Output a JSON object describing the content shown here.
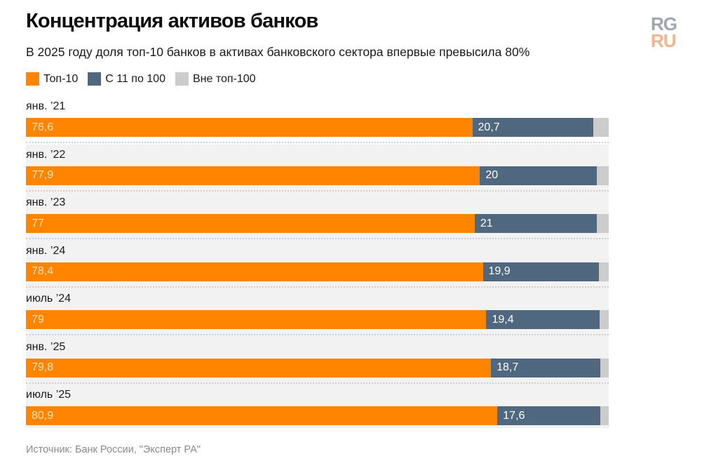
{
  "header": {
    "title": "Концентрация активов банков",
    "subtitle": "В 2025 году доля топ-10 банков в активах банковского сектора впервые превысила 80%",
    "logo_top": "RG",
    "logo_bottom": "RU"
  },
  "legend": [
    {
      "label": "Топ-10",
      "color": "#ff8400"
    },
    {
      "label": "С 11 по 100",
      "color": "#4f687f"
    },
    {
      "label": "Вне топ-100",
      "color": "#cccccc"
    }
  ],
  "source": "Источник: Банк России, \"Эксперт РА\"",
  "chart_data": {
    "type": "bar",
    "orientation": "horizontal",
    "stacked": true,
    "title": "Концентрация активов банков",
    "subtitle": "В 2025 году доля топ-10 банков в активах банковского сектора впервые превысила 80%",
    "xlabel": "",
    "ylabel": "",
    "xlim": [
      0,
      100
    ],
    "unit": "%",
    "legend_position": "top-left",
    "categories": [
      "янв. ’21",
      "янв. ’22",
      "янв. ’23",
      "янв. ’24",
      "июль ’24",
      "янв. ’25",
      "июль ’25"
    ],
    "series": [
      {
        "name": "Топ-10",
        "color": "#ff8400",
        "values": [
          76.6,
          77.9,
          77,
          78.4,
          79,
          79.8,
          80.9
        ],
        "labels": [
          "76,6",
          "77,9",
          "77",
          "78,4",
          "79",
          "79,8",
          "80,9"
        ]
      },
      {
        "name": "С 11 по 100",
        "color": "#4f687f",
        "values": [
          20.7,
          20,
          21,
          19.9,
          19.4,
          18.7,
          17.6
        ],
        "labels": [
          "20,7",
          "20",
          "21",
          "19,9",
          "19,4",
          "18,7",
          "17,6"
        ]
      },
      {
        "name": "Вне топ-100",
        "color": "#cccccc",
        "values": [
          2.7,
          2.1,
          2.0,
          1.7,
          1.6,
          1.5,
          1.5
        ],
        "labels": [
          "",
          "",
          "",
          "",
          "",
          "",
          ""
        ]
      }
    ]
  }
}
